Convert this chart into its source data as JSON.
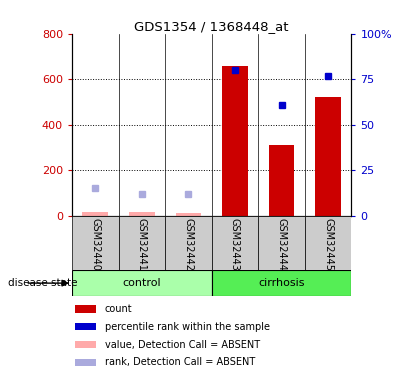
{
  "title": "GDS1354 / 1368448_at",
  "samples": [
    "GSM32440",
    "GSM32441",
    "GSM32442",
    "GSM32443",
    "GSM32444",
    "GSM32445"
  ],
  "counts_present": [
    null,
    null,
    null,
    660,
    310,
    520
  ],
  "counts_absent": [
    18,
    18,
    12,
    null,
    null,
    null
  ],
  "rank_present_pct": [
    null,
    null,
    null,
    80,
    61,
    77
  ],
  "rank_absent_pct": [
    15,
    12,
    12,
    null,
    null,
    null
  ],
  "ylim_left": [
    0,
    800
  ],
  "ylim_right": [
    0,
    100
  ],
  "yticks_left": [
    0,
    200,
    400,
    600,
    800
  ],
  "yticks_right": [
    0,
    25,
    50,
    75,
    100
  ],
  "ytick_labels_left": [
    "0",
    "200",
    "400",
    "600",
    "800"
  ],
  "ytick_labels_right": [
    "0",
    "25",
    "50",
    "75",
    "100%"
  ],
  "color_bar_present": "#cc0000",
  "color_bar_absent": "#ffaaaa",
  "color_rank_present": "#0000cc",
  "color_rank_absent": "#aaaadd",
  "color_control_bg": "#aaffaa",
  "color_cirrhosis_bg": "#55ee55",
  "color_sample_bg": "#cccccc",
  "legend_items": [
    [
      "#cc0000",
      "count"
    ],
    [
      "#0000cc",
      "percentile rank within the sample"
    ],
    [
      "#ffaaaa",
      "value, Detection Call = ABSENT"
    ],
    [
      "#aaaadd",
      "rank, Detection Call = ABSENT"
    ]
  ]
}
